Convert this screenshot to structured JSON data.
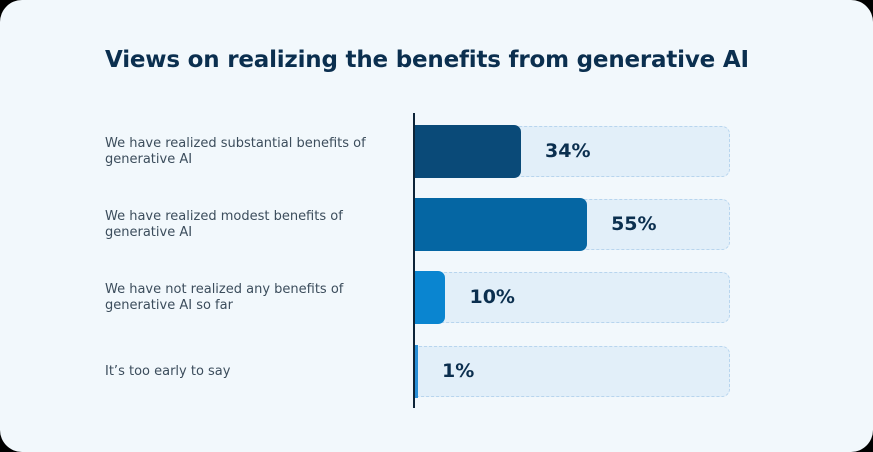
{
  "chart_data": {
    "type": "bar",
    "orientation": "horizontal",
    "title": "Views on realizing the benefits from generative AI",
    "categories": [
      "We have realized substantial benefits of generative AI",
      "We have realized modest benefits of generative AI",
      "We have not realized any benefits of generative AI so far",
      "It’s too early to say"
    ],
    "values": [
      34,
      55,
      10,
      1
    ],
    "value_labels": [
      "34%",
      "55%",
      "10%",
      "1%"
    ],
    "unit": "%",
    "xlim": [
      0,
      100
    ],
    "bar_colors": [
      "#0a4a78",
      "#0566a3",
      "#0a85d0",
      "#2a8fd6"
    ],
    "track_color": "#e2eff9",
    "grid": false,
    "legend": "none"
  }
}
